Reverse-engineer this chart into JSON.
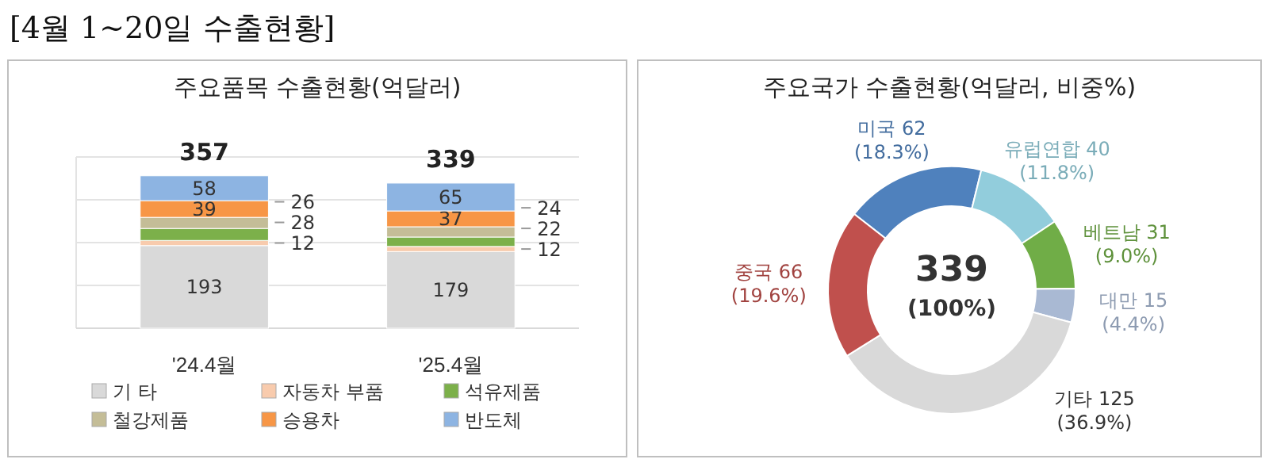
{
  "chart_data": [
    {
      "type": "bar",
      "title": "주요품목 수출현황(억달러)",
      "annotations": [
        "[4월 1~20일 수출현황]"
      ],
      "categories": [
        "'24.4월",
        "'25.4월"
      ],
      "stacked": true,
      "series": [
        {
          "name": "기 타",
          "color": "#d9d9d9",
          "values": [
            193,
            179
          ]
        },
        {
          "name": "자동차 부품",
          "color": "#f8cbad",
          "values": [
            12,
            12
          ]
        },
        {
          "name": "석유제품",
          "color": "#7cb04a",
          "values": [
            28,
            22
          ]
        },
        {
          "name": "철강제품",
          "color": "#c4bd97",
          "values": [
            26,
            24
          ]
        },
        {
          "name": "승용차",
          "color": "#f79646",
          "values": [
            39,
            37
          ]
        },
        {
          "name": "반도체",
          "color": "#8db4e2",
          "values": [
            58,
            65
          ]
        }
      ],
      "ylim": [
        0,
        400
      ],
      "yticks": [
        {
          "value": 0,
          "label": null
        },
        {
          "value": 100,
          "label": null
        },
        {
          "value": 200,
          "label": null
        },
        {
          "value": 300,
          "label": null
        },
        {
          "value": 400,
          "label": null
        }
      ],
      "tick_labels": "x",
      "grid": "y",
      "data_labels": true,
      "totals": [
        "357",
        "339"
      ],
      "legend": "bottom"
    },
    {
      "type": "donut",
      "title": "주요국가 수출현황(억달러, 비중%)",
      "annotations": [
        "339",
        "(100%)"
      ],
      "categories": [
        "미국",
        "유럽연합",
        "베트남",
        "대만",
        "기타",
        "중국"
      ],
      "values": [
        62,
        40,
        31,
        15,
        125,
        66
      ],
      "colors": [
        "#4f81bd",
        "#92cddc",
        "#70ad47",
        "#a9b9d3",
        "#d9d9d9",
        "#c0504d"
      ],
      "value_labels": [
        "62 (18.3%)",
        "40 (11.8%)",
        "31 (9.0%)",
        "15 (4.4%)",
        "125 (36.9%)",
        "66 (19.6%)"
      ]
    }
  ]
}
